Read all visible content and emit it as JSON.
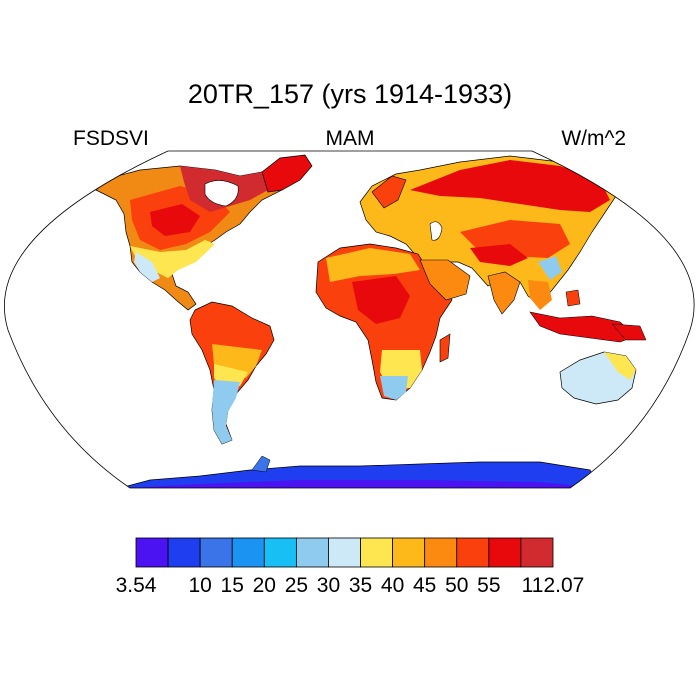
{
  "map": {
    "title": "20TR_157 (yrs 1914-1933)",
    "left_label": "FSDSVI",
    "center_label": "MAM",
    "right_label": "W/m^2",
    "projection": "Robinson",
    "colors": {
      "ocean": "#ffffff",
      "coast": "#000000",
      "frame": "#000000"
    }
  },
  "colorbar": {
    "colors": [
      "#4b12f2",
      "#1e3ef0",
      "#3a74e8",
      "#1b93f2",
      "#18bff5",
      "#8ecbee",
      "#cde9f7",
      "#fde650",
      "#fdb81a",
      "#fc8a10",
      "#fa400c",
      "#e8090c",
      "#d22b2f"
    ],
    "labels": [
      "3.54",
      "10",
      "15",
      "20",
      "25",
      "30",
      "35",
      "40",
      "45",
      "50",
      "55",
      "112.07"
    ]
  }
}
